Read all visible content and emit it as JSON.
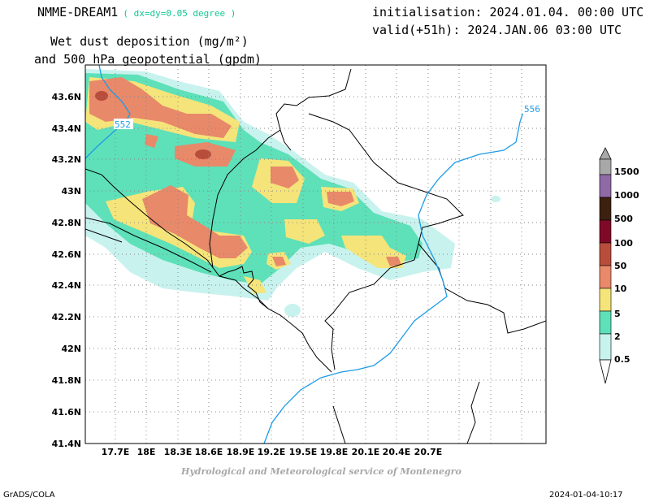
{
  "header": {
    "model": "NMME-DREAM1",
    "resolution": "( dx=dy=0.05 degree )",
    "initialisation": "initialisation: 2024.01.04. 00:00 UTC",
    "valid": "valid(+51h): 2024.JAN.06 03:00 UTC",
    "title_line1": "Wet dust deposition (mg/m²)",
    "title_line2": "and 500 hPa geopotential (gpdm)"
  },
  "map": {
    "lat_ticks": [
      "43.6N",
      "43.4N",
      "43.2N",
      "43N",
      "42.8N",
      "42.6N",
      "42.4N",
      "42.2N",
      "42N",
      "41.8N",
      "41.6N",
      "41.4N"
    ],
    "lon_ticks": [
      "17.7E",
      "18E",
      "18.3E",
      "18.6E",
      "18.9E",
      "19.2E",
      "19.5E",
      "19.8E",
      "20.1E",
      "20.4E",
      "20.7E"
    ],
    "contour_labels": [
      "552",
      "556"
    ],
    "contour_color": "#1e9be6"
  },
  "legend": {
    "levels": [
      "0.5",
      "2",
      "5",
      "10",
      "50",
      "100",
      "500",
      "1000",
      "1500"
    ],
    "colors": [
      "#c8f2ee",
      "#5ee0b8",
      "#f5e47a",
      "#e8896a",
      "#b94d3b",
      "#7f0a28",
      "#3c2010",
      "#8e6aa6",
      "#a8a8a8"
    ]
  },
  "footer": {
    "credit": "Hydrological and Meteorological service of Montenegro",
    "software": "GrADS/COLA",
    "timestamp": "2024-01-04-10:17"
  }
}
